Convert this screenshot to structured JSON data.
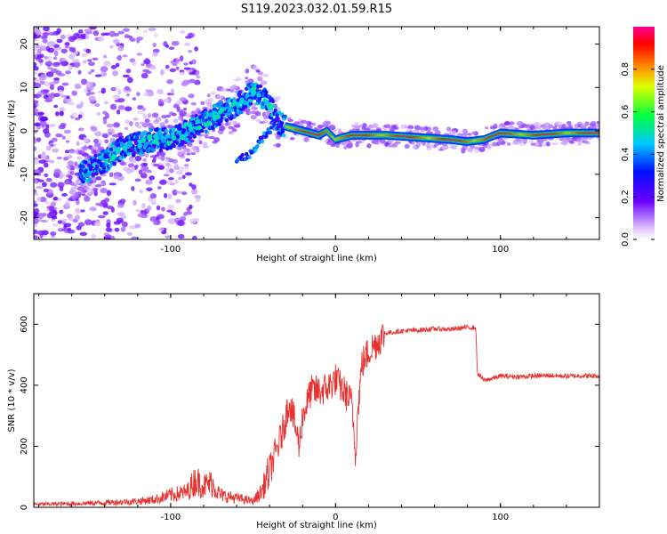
{
  "title": "S119.2023.032.01.59.R15",
  "colors": {
    "snr_line": "#e8302e",
    "axis": "#000000"
  },
  "chart_data": [
    {
      "type": "heatmap",
      "title": "S119.2023.032.01.59.R15",
      "xlabel": "Height of straight line (km)",
      "ylabel": "Frequency (Hz)",
      "xlim": [
        -183,
        160
      ],
      "ylim": [
        -25,
        24
      ],
      "xticks": [
        -100,
        0,
        100
      ],
      "yticks": [
        -20,
        -10,
        0,
        10,
        20
      ],
      "xtick_labels": [
        "-100",
        "0",
        "100"
      ],
      "ytick_labels": [
        "-20",
        "-10",
        "0",
        "10",
        "20"
      ],
      "colorbar": {
        "label": "Normalized spectral amplitude",
        "range": [
          0,
          1
        ],
        "ticks": [
          0.0,
          0.2,
          0.4,
          0.6,
          0.8
        ],
        "tick_labels": [
          "0.0",
          "0.2",
          "0.4",
          "0.6",
          "0.8"
        ],
        "colormap": "rainbow"
      },
      "ridge": {
        "description": "dominant frequency track",
        "x": [
          -155,
          -140,
          -130,
          -120,
          -110,
          -100,
          -90,
          -80,
          -70,
          -60,
          -50,
          -45,
          -40,
          -35,
          -30,
          -20,
          -10,
          -5,
          0,
          10,
          30,
          50,
          70,
          80,
          90,
          100,
          120,
          140,
          160
        ],
        "y": [
          -10,
          -7,
          -4,
          -3,
          -2,
          -2,
          0,
          2,
          4,
          6,
          9,
          8,
          6,
          2,
          1,
          0,
          -1,
          0,
          -2,
          -1,
          -1,
          -1.5,
          -2,
          -2.5,
          -2,
          -0.5,
          -1,
          -0.5,
          -0.5
        ]
      },
      "secondary_ridge": {
        "x": [
          -60,
          -50,
          -45,
          -40,
          -35
        ],
        "y": [
          -7,
          -5,
          -2,
          0,
          4
        ]
      }
    },
    {
      "type": "line",
      "xlabel": "Height of straight line (km)",
      "ylabel": "SNR (10 * v/v)",
      "xlim": [
        -183,
        160
      ],
      "ylim": [
        0,
        700
      ],
      "xticks": [
        -100,
        0,
        100
      ],
      "yticks": [
        0,
        200,
        400,
        600
      ],
      "xtick_labels": [
        "-100",
        "0",
        "100"
      ],
      "ytick_labels": [
        "0",
        "200",
        "400",
        "600"
      ],
      "series": [
        {
          "name": "SNR",
          "x": [
            -183,
            -160,
            -140,
            -120,
            -110,
            -100,
            -90,
            -85,
            -80,
            -75,
            -70,
            -60,
            -50,
            -45,
            -40,
            -35,
            -32,
            -30,
            -28,
            -25,
            -22,
            -20,
            -18,
            -15,
            -10,
            -5,
            0,
            5,
            10,
            12,
            14,
            16,
            20,
            25,
            30,
            40,
            50,
            60,
            70,
            80,
            85,
            86,
            90,
            100,
            110,
            120,
            130,
            140,
            150,
            160
          ],
          "values": [
            10,
            12,
            15,
            20,
            25,
            40,
            50,
            90,
            70,
            80,
            40,
            30,
            20,
            50,
            120,
            200,
            250,
            300,
            350,
            280,
            200,
            300,
            330,
            380,
            380,
            390,
            420,
            380,
            340,
            180,
            350,
            470,
            510,
            540,
            570,
            578,
            580,
            585,
            583,
            590,
            588,
            440,
            415,
            430,
            428,
            430,
            432,
            430,
            431,
            430
          ]
        }
      ]
    }
  ]
}
